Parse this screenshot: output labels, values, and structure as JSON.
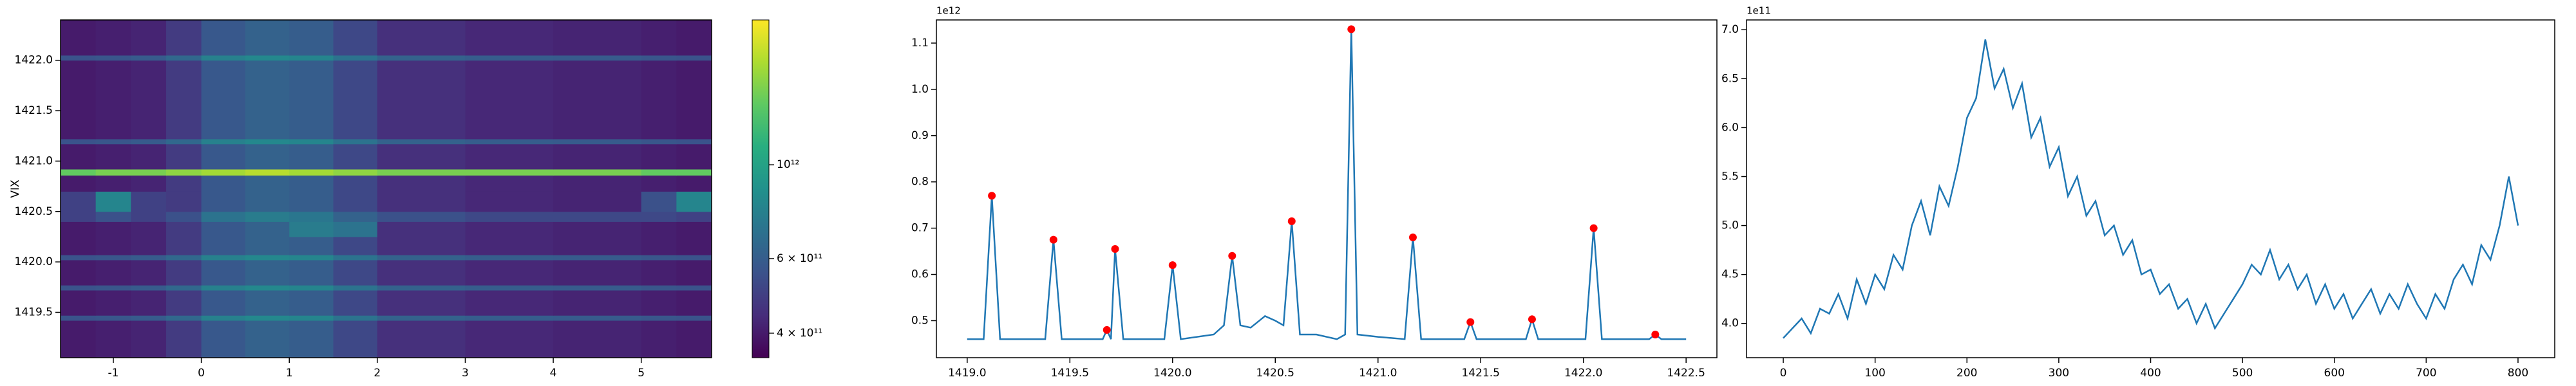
{
  "chart_data": [
    {
      "type": "heatmap",
      "ylabel": "VIX",
      "colormap": "viridis",
      "xlim": [
        -1.6,
        5.8
      ],
      "ylim": [
        1419.05,
        1422.4
      ],
      "xticks": [
        -1,
        0,
        1,
        2,
        3,
        4,
        5
      ],
      "yticks": [
        1419.5,
        {
          "value": 1420,
          "label": "1420.0"
        },
        1420.5,
        {
          "value": 1421,
          "label": "1421.0"
        },
        1421.5,
        {
          "value": 1422,
          "label": "1422.0"
        }
      ],
      "x_edges": [
        -1.6,
        -1.2,
        -0.8,
        -0.4,
        0,
        0.5,
        1,
        1.5,
        2,
        3,
        4,
        5,
        5.4,
        5.8
      ],
      "y_edges": [
        1419.05,
        1419.42,
        1419.47,
        1419.72,
        1419.77,
        1420.02,
        1420.07,
        1420.25,
        1420.4,
        1420.5,
        1420.7,
        1420.86,
        1420.92,
        1421.17,
        1421.22,
        1422.0,
        1422.05,
        1422.4
      ],
      "z": [
        [
          400000000000.0,
          410000000000.0,
          420000000000.0,
          480000000000.0,
          580000000000.0,
          620000000000.0,
          600000000000.0,
          520000000000.0,
          450000000000.0,
          430000000000.0,
          420000000000.0,
          410000000000.0,
          400000000000.0
        ],
        [
          560000000000.0,
          570000000000.0,
          590000000000.0,
          650000000000.0,
          780000000000.0,
          820000000000.0,
          800000000000.0,
          700000000000.0,
          620000000000.0,
          600000000000.0,
          590000000000.0,
          570000000000.0,
          560000000000.0
        ],
        [
          400000000000.0,
          410000000000.0,
          420000000000.0,
          480000000000.0,
          580000000000.0,
          620000000000.0,
          600000000000.0,
          520000000000.0,
          450000000000.0,
          430000000000.0,
          420000000000.0,
          410000000000.0,
          400000000000.0
        ],
        [
          560000000000.0,
          570000000000.0,
          590000000000.0,
          650000000000.0,
          780000000000.0,
          820000000000.0,
          800000000000.0,
          700000000000.0,
          620000000000.0,
          600000000000.0,
          590000000000.0,
          570000000000.0,
          560000000000.0
        ],
        [
          400000000000.0,
          410000000000.0,
          420000000000.0,
          480000000000.0,
          580000000000.0,
          620000000000.0,
          600000000000.0,
          520000000000.0,
          450000000000.0,
          430000000000.0,
          420000000000.0,
          410000000000.0,
          400000000000.0
        ],
        [
          560000000000.0,
          570000000000.0,
          590000000000.0,
          650000000000.0,
          780000000000.0,
          820000000000.0,
          800000000000.0,
          700000000000.0,
          620000000000.0,
          600000000000.0,
          590000000000.0,
          570000000000.0,
          560000000000.0
        ],
        [
          400000000000.0,
          410000000000.0,
          420000000000.0,
          480000000000.0,
          580000000000.0,
          620000000000.0,
          600000000000.0,
          520000000000.0,
          450000000000.0,
          430000000000.0,
          420000000000.0,
          410000000000.0,
          400000000000.0
        ],
        [
          400000000000.0,
          410000000000.0,
          420000000000.0,
          480000000000.0,
          580000000000.0,
          620000000000.0,
          750000000000.0,
          700000000000.0,
          450000000000.0,
          430000000000.0,
          420000000000.0,
          410000000000.0,
          400000000000.0
        ],
        [
          500000000000.0,
          550000000000.0,
          500000000000.0,
          550000000000.0,
          700000000000.0,
          750000000000.0,
          720000000000.0,
          620000000000.0,
          550000000000.0,
          520000000000.0,
          520000000000.0,
          520000000000.0,
          500000000000.0
        ],
        [
          500000000000.0,
          800000000000.0,
          500000000000.0,
          480000000000.0,
          580000000000.0,
          620000000000.0,
          600000000000.0,
          520000000000.0,
          450000000000.0,
          430000000000.0,
          420000000000.0,
          550000000000.0,
          800000000000.0
        ],
        [
          400000000000.0,
          410000000000.0,
          420000000000.0,
          480000000000.0,
          580000000000.0,
          620000000000.0,
          600000000000.0,
          520000000000.0,
          450000000000.0,
          430000000000.0,
          420000000000.0,
          410000000000.0,
          400000000000.0
        ],
        [
          1400000000000.0,
          1500000000000.0,
          1500000000000.0,
          1600000000000.0,
          1700000000000.0,
          1800000000000.0,
          1700000000000.0,
          1600000000000.0,
          1500000000000.0,
          1500000000000.0,
          1500000000000.0,
          1400000000000.0,
          1400000000000.0
        ],
        [
          400000000000.0,
          410000000000.0,
          420000000000.0,
          480000000000.0,
          580000000000.0,
          620000000000.0,
          600000000000.0,
          520000000000.0,
          450000000000.0,
          430000000000.0,
          420000000000.0,
          410000000000.0,
          400000000000.0
        ],
        [
          560000000000.0,
          570000000000.0,
          590000000000.0,
          650000000000.0,
          780000000000.0,
          820000000000.0,
          800000000000.0,
          700000000000.0,
          620000000000.0,
          600000000000.0,
          590000000000.0,
          570000000000.0,
          560000000000.0
        ],
        [
          400000000000.0,
          410000000000.0,
          420000000000.0,
          480000000000.0,
          580000000000.0,
          620000000000.0,
          600000000000.0,
          520000000000.0,
          450000000000.0,
          430000000000.0,
          420000000000.0,
          410000000000.0,
          400000000000.0
        ],
        [
          560000000000.0,
          570000000000.0,
          590000000000.0,
          650000000000.0,
          780000000000.0,
          820000000000.0,
          800000000000.0,
          700000000000.0,
          620000000000.0,
          600000000000.0,
          590000000000.0,
          570000000000.0,
          560000000000.0
        ],
        [
          400000000000.0,
          410000000000.0,
          420000000000.0,
          480000000000.0,
          580000000000.0,
          620000000000.0,
          600000000000.0,
          520000000000.0,
          450000000000.0,
          430000000000.0,
          420000000000.0,
          410000000000.0,
          400000000000.0
        ]
      ],
      "colorbar": {
        "scale": "log",
        "lim": [
          350000000000.0,
          2200000000000.0
        ],
        "ticks": [
          {
            "value": 400000000000.0,
            "label": "4 × 10¹¹"
          },
          {
            "value": 600000000000.0,
            "label": "6 × 10¹¹"
          },
          {
            "value": 1000000000000.0,
            "label": "10¹²"
          }
        ]
      }
    },
    {
      "type": "line",
      "offset_label": "1e12",
      "color": "#1f77b4",
      "xlim": [
        1418.85,
        1422.65
      ],
      "ylim": [
        0.42,
        1.15
      ],
      "xticks": [
        {
          "value": 1419,
          "label": "1419.0"
        },
        1419.5,
        {
          "value": 1420,
          "label": "1420.0"
        },
        1420.5,
        {
          "value": 1421,
          "label": "1421.0"
        },
        1421.5,
        {
          "value": 1422,
          "label": "1422.0"
        },
        1422.5
      ],
      "yticks": [
        0.5,
        0.6,
        0.7,
        0.8,
        0.9,
        {
          "value": 1,
          "label": "1.0"
        },
        1.1
      ],
      "x": [
        1419.0,
        1419.08,
        1419.12,
        1419.16,
        1419.38,
        1419.42,
        1419.46,
        1419.66,
        1419.68,
        1419.7,
        1419.72,
        1419.76,
        1419.96,
        1420.0,
        1420.04,
        1420.2,
        1420.25,
        1420.29,
        1420.33,
        1420.38,
        1420.45,
        1420.5,
        1420.54,
        1420.58,
        1420.62,
        1420.7,
        1420.8,
        1420.84,
        1420.87,
        1420.9,
        1421.0,
        1421.13,
        1421.17,
        1421.21,
        1421.42,
        1421.45,
        1421.48,
        1421.72,
        1421.75,
        1421.78,
        1422.01,
        1422.05,
        1422.09,
        1422.32,
        1422.35,
        1422.38,
        1422.5
      ],
      "values": [
        0.46,
        0.46,
        0.77,
        0.46,
        0.46,
        0.675,
        0.46,
        0.46,
        0.48,
        0.46,
        0.655,
        0.46,
        0.46,
        0.62,
        0.46,
        0.47,
        0.49,
        0.64,
        0.49,
        0.485,
        0.51,
        0.5,
        0.49,
        0.715,
        0.47,
        0.47,
        0.46,
        0.47,
        1.13,
        0.47,
        0.465,
        0.46,
        0.68,
        0.46,
        0.46,
        0.497,
        0.46,
        0.46,
        0.503,
        0.46,
        0.46,
        0.7,
        0.46,
        0.46,
        0.47,
        0.46,
        0.46
      ],
      "peaks": {
        "color": "#ff0000",
        "x": [
          1419.12,
          1419.42,
          1419.68,
          1419.72,
          1420.0,
          1420.29,
          1420.58,
          1420.87,
          1421.17,
          1421.45,
          1421.75,
          1422.05,
          1422.35
        ],
        "values": [
          0.77,
          0.675,
          0.48,
          0.655,
          0.62,
          0.64,
          0.715,
          1.13,
          0.68,
          0.497,
          0.503,
          0.7,
          0.47
        ]
      }
    },
    {
      "type": "line",
      "offset_label": "1e11",
      "color": "#1f77b4",
      "xlim": [
        -40,
        840
      ],
      "ylim": [
        3.65,
        7.1
      ],
      "xticks": [
        0,
        100,
        200,
        300,
        400,
        500,
        600,
        700,
        800
      ],
      "yticks": [
        {
          "value": 4,
          "label": "4.0"
        },
        4.5,
        {
          "value": 5,
          "label": "5.0"
        },
        5.5,
        {
          "value": 6,
          "label": "6.0"
        },
        6.5,
        {
          "value": 7,
          "label": "7.0"
        }
      ],
      "x": [
        0,
        10,
        20,
        30,
        40,
        50,
        60,
        70,
        80,
        90,
        100,
        110,
        120,
        130,
        140,
        150,
        160,
        170,
        180,
        190,
        200,
        210,
        220,
        230,
        240,
        250,
        260,
        270,
        280,
        290,
        300,
        310,
        320,
        330,
        340,
        350,
        360,
        370,
        380,
        390,
        400,
        410,
        420,
        430,
        440,
        450,
        460,
        470,
        480,
        490,
        500,
        510,
        520,
        530,
        540,
        550,
        560,
        570,
        580,
        590,
        600,
        610,
        620,
        630,
        640,
        650,
        660,
        670,
        680,
        690,
        700,
        710,
        720,
        730,
        740,
        750,
        760,
        770,
        780,
        790,
        800
      ],
      "values": [
        3.85,
        3.95,
        4.05,
        3.9,
        4.15,
        4.1,
        4.3,
        4.05,
        4.45,
        4.2,
        4.5,
        4.35,
        4.7,
        4.55,
        5.0,
        5.25,
        4.9,
        5.4,
        5.2,
        5.6,
        6.1,
        6.3,
        6.9,
        6.4,
        6.6,
        6.2,
        6.45,
        5.9,
        6.1,
        5.6,
        5.8,
        5.3,
        5.5,
        5.1,
        5.25,
        4.9,
        5.0,
        4.7,
        4.85,
        4.5,
        4.55,
        4.3,
        4.4,
        4.15,
        4.25,
        4.0,
        4.2,
        3.95,
        4.1,
        4.25,
        4.4,
        4.6,
        4.5,
        4.75,
        4.45,
        4.6,
        4.35,
        4.5,
        4.2,
        4.4,
        4.15,
        4.3,
        4.05,
        4.2,
        4.35,
        4.1,
        4.3,
        4.15,
        4.4,
        4.2,
        4.05,
        4.3,
        4.15,
        4.45,
        4.6,
        4.4,
        4.8,
        4.65,
        5.0,
        5.5,
        5.0
      ]
    }
  ]
}
